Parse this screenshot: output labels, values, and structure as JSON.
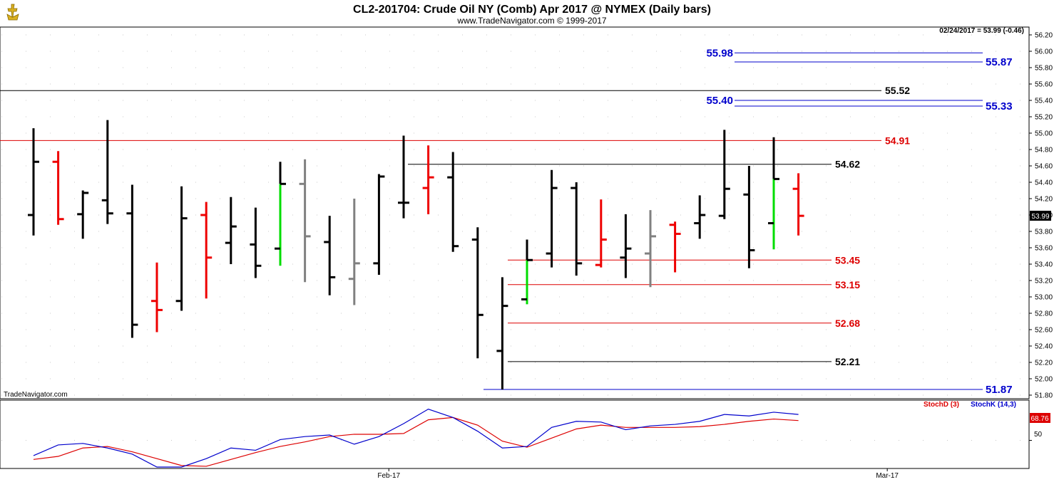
{
  "header": {
    "title": "CL2-201704:  Crude Oil NY (Comb) Apr 2017 @ NYMEX  (Daily bars)",
    "subtitle": "www.TradeNavigator.com © 1999-2017",
    "last_quote": "02/24/2017 = 53.99 (-0.46)",
    "watermark": "TradeNavigator.com",
    "logo_icon": "anchor-trophy-icon"
  },
  "colors": {
    "up_bar": "#000000",
    "down_bar": "#ee0000",
    "neutral_bar": "#808080",
    "green_tick": "#00dd00",
    "level_black": "#000000",
    "level_red": "#dd0000",
    "level_blue": "#0000cc",
    "stochD": "#dd0000",
    "stochK": "#0000cc",
    "price_box": "#000000",
    "stoch_box": "#dd0000"
  },
  "chart_data": {
    "type": "ohlc",
    "ylim": [
      51.75,
      56.3
    ],
    "y_ticks": [
      "56.20",
      "56.00",
      "55.80",
      "55.60",
      "55.40",
      "55.20",
      "55.00",
      "54.80",
      "54.60",
      "54.40",
      "54.20",
      "54.00",
      "53.80",
      "53.60",
      "53.40",
      "53.20",
      "53.00",
      "52.80",
      "52.60",
      "52.40",
      "52.20",
      "52.00",
      "51.80"
    ],
    "x_labels": [
      {
        "label": "Feb-17",
        "index": 14.4
      },
      {
        "label": "Mar-17",
        "index": 34.6
      }
    ],
    "current_price": "53.99",
    "bars": [
      {
        "o": 54.0,
        "h": 55.06,
        "l": 53.75,
        "c": 54.65,
        "color": "black"
      },
      {
        "o": 54.65,
        "h": 54.78,
        "l": 53.88,
        "c": 53.95,
        "color": "red"
      },
      {
        "o": 54.01,
        "h": 54.3,
        "l": 53.71,
        "c": 54.27,
        "color": "black"
      },
      {
        "o": 54.18,
        "h": 55.16,
        "l": 53.89,
        "c": 54.02,
        "color": "black"
      },
      {
        "o": 54.02,
        "h": 54.37,
        "l": 52.5,
        "c": 52.66,
        "color": "black"
      },
      {
        "o": 52.95,
        "h": 53.42,
        "l": 52.57,
        "c": 52.84,
        "color": "red"
      },
      {
        "o": 52.95,
        "h": 54.35,
        "l": 52.83,
        "c": 53.96,
        "color": "black"
      },
      {
        "o": 54.0,
        "h": 54.16,
        "l": 52.98,
        "c": 53.48,
        "color": "red"
      },
      {
        "o": 53.66,
        "h": 54.22,
        "l": 53.4,
        "c": 53.86,
        "color": "black"
      },
      {
        "o": 53.64,
        "h": 54.09,
        "l": 53.23,
        "c": 53.38,
        "color": "black"
      },
      {
        "o": 53.59,
        "h": 54.65,
        "l": 53.38,
        "c": 54.38,
        "color": "black",
        "green_tail": true
      },
      {
        "o": 54.38,
        "h": 54.68,
        "l": 53.18,
        "c": 53.74,
        "color": "gray"
      },
      {
        "o": 53.67,
        "h": 53.99,
        "l": 53.02,
        "c": 53.24,
        "color": "black"
      },
      {
        "o": 53.22,
        "h": 54.2,
        "l": 52.9,
        "c": 53.41,
        "color": "gray"
      },
      {
        "o": 53.41,
        "h": 54.5,
        "l": 53.27,
        "c": 54.47,
        "color": "black"
      },
      {
        "o": 54.15,
        "h": 54.97,
        "l": 53.96,
        "c": 54.15,
        "color": "black"
      },
      {
        "o": 54.33,
        "h": 54.85,
        "l": 54.01,
        "c": 54.46,
        "color": "red"
      },
      {
        "o": 54.46,
        "h": 54.77,
        "l": 53.55,
        "c": 53.62,
        "color": "black"
      },
      {
        "o": 53.7,
        "h": 53.85,
        "l": 52.25,
        "c": 52.78,
        "color": "black"
      },
      {
        "o": 52.34,
        "h": 53.24,
        "l": 51.87,
        "c": 52.89,
        "color": "black"
      },
      {
        "o": 52.97,
        "h": 53.7,
        "l": 52.91,
        "c": 53.45,
        "color": "black",
        "green_tail": true
      },
      {
        "o": 53.53,
        "h": 54.55,
        "l": 53.36,
        "c": 54.33,
        "color": "black"
      },
      {
        "o": 54.33,
        "h": 54.4,
        "l": 53.26,
        "c": 53.41,
        "color": "black"
      },
      {
        "o": 53.39,
        "h": 54.19,
        "l": 53.36,
        "c": 53.7,
        "color": "red"
      },
      {
        "o": 53.48,
        "h": 54.01,
        "l": 53.23,
        "c": 53.59,
        "color": "black"
      },
      {
        "o": 53.53,
        "h": 54.06,
        "l": 53.12,
        "c": 53.74,
        "color": "gray"
      },
      {
        "o": 53.88,
        "h": 53.92,
        "l": 53.3,
        "c": 53.77,
        "color": "red"
      },
      {
        "o": 53.9,
        "h": 54.24,
        "l": 53.71,
        "c": 54.0,
        "color": "black"
      },
      {
        "o": 53.99,
        "h": 55.04,
        "l": 53.95,
        "c": 54.32,
        "color": "black"
      },
      {
        "o": 54.25,
        "h": 54.6,
        "l": 53.35,
        "c": 53.57,
        "color": "black"
      },
      {
        "o": 53.9,
        "h": 54.95,
        "l": 53.58,
        "c": 54.44,
        "color": "black",
        "green_tail": true
      },
      {
        "o": 54.32,
        "h": 54.51,
        "l": 53.75,
        "c": 53.99,
        "color": "red"
      }
    ],
    "levels": [
      {
        "value": 55.98,
        "label": "55.98",
        "color": "blue",
        "side": "left"
      },
      {
        "value": 55.87,
        "label": "55.87",
        "color": "blue",
        "side": "right"
      },
      {
        "value": 55.52,
        "label": "55.52",
        "color": "black",
        "side": "right",
        "full": true
      },
      {
        "value": 55.4,
        "label": "55.40",
        "color": "blue",
        "side": "left"
      },
      {
        "value": 55.33,
        "label": "55.33",
        "color": "blue",
        "side": "right"
      },
      {
        "value": 54.91,
        "label": "54.91",
        "color": "red",
        "side": "right",
        "full": true
      },
      {
        "value": 54.62,
        "label": "54.62",
        "color": "black",
        "side": "right"
      },
      {
        "value": 53.45,
        "label": "53.45",
        "color": "red",
        "side": "right"
      },
      {
        "value": 53.15,
        "label": "53.15",
        "color": "red",
        "side": "right"
      },
      {
        "value": 52.68,
        "label": "52.68",
        "color": "red",
        "side": "right"
      },
      {
        "value": 52.21,
        "label": "52.21",
        "color": "black",
        "side": "right"
      },
      {
        "value": 51.87,
        "label": "51.87",
        "color": "blue",
        "side": "right"
      }
    ],
    "stochastic": {
      "ylim": [
        15,
        100
      ],
      "y_tick": "50",
      "current": "68.76",
      "d_label": "StochD (3)",
      "k_label": "StochK (14,3)",
      "stochD": [
        25,
        29,
        40,
        42,
        35,
        26,
        17,
        16,
        25,
        34,
        42,
        48,
        55,
        58,
        58,
        59,
        77,
        80,
        70,
        49,
        41,
        53,
        65,
        70,
        67,
        67,
        67,
        68,
        71,
        75,
        78,
        76
      ],
      "stochK": [
        30,
        44,
        46,
        40,
        32,
        15,
        15,
        26,
        40,
        37,
        51,
        55,
        57,
        45,
        55,
        72,
        91,
        80,
        62,
        40,
        42,
        67,
        75,
        74,
        64,
        69,
        71,
        75,
        84,
        82,
        87,
        84
      ]
    }
  }
}
